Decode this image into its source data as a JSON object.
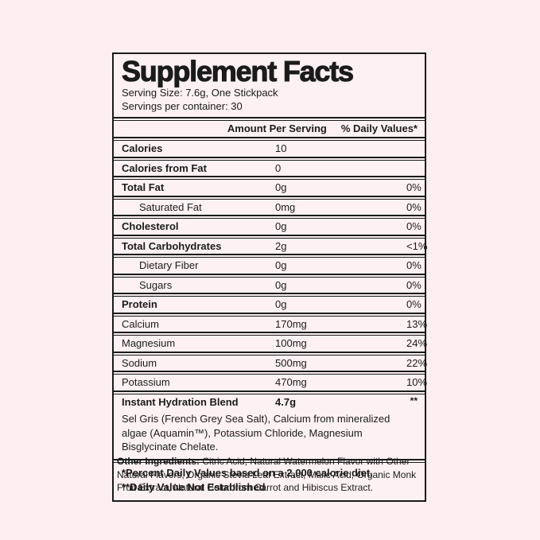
{
  "colors": {
    "page_bg": "#fdeff1",
    "panel_bg": "#fdf1f3",
    "border": "#1a1a1a",
    "text": "#1b1b1b"
  },
  "panel": {
    "title": "Supplement Facts",
    "serving_size": "Serving Size: 7.6g, One Stickpack",
    "servings_per_container": "Servings per container: 30",
    "header": {
      "amount": "Amount Per Serving",
      "daily_value": "% Daily Values*"
    },
    "rows": [
      {
        "label": "Calories",
        "amount": "10",
        "dv": "",
        "bold": true,
        "indent": false
      },
      {
        "label": "Calories from Fat",
        "amount": "0",
        "dv": "",
        "bold": true,
        "indent": false
      },
      {
        "label": "Total Fat",
        "amount": "0g",
        "dv": "0%",
        "bold": true,
        "indent": false
      },
      {
        "label": "Saturated Fat",
        "amount": "0mg",
        "dv": "0%",
        "bold": false,
        "indent": true
      },
      {
        "label": "Cholesterol",
        "amount": "0g",
        "dv": "0%",
        "bold": true,
        "indent": false
      },
      {
        "label": "Total Carbohydrates",
        "amount": "2g",
        "dv": "<1%",
        "bold": true,
        "indent": false
      },
      {
        "label": "Dietary Fiber",
        "amount": "0g",
        "dv": "0%",
        "bold": false,
        "indent": true
      },
      {
        "label": "Sugars",
        "amount": "0g",
        "dv": "0%",
        "bold": false,
        "indent": true
      },
      {
        "label": "Protein",
        "amount": "0g",
        "dv": "0%",
        "bold": true,
        "indent": false
      },
      {
        "label": "Calcium",
        "amount": "170mg",
        "dv": "13%",
        "bold": false,
        "indent": false
      },
      {
        "label": "Magnesium",
        "amount": "100mg",
        "dv": "24%",
        "bold": false,
        "indent": false
      },
      {
        "label": "Sodium",
        "amount": "500mg",
        "dv": "22%",
        "bold": false,
        "indent": false
      },
      {
        "label": "Potassium",
        "amount": "470mg",
        "dv": "10%",
        "bold": false,
        "indent": false
      }
    ],
    "blend": {
      "label": "Instant Hydration Blend",
      "amount": "4.7g",
      "dv": "**",
      "description": "Sel Gris (French Grey Sea Salt), Calcium from mineralized algae (Aquamin™), Potassium Chloride, Magnesium Bisglycinate Chelate."
    },
    "footnotes": [
      "*Percent Daily Values based on a 2,000 calorie diet.",
      "**Daily Value Not Established"
    ]
  },
  "other_ingredients": {
    "label": "Other Ingredients:",
    "text": "Citric Acid, Natural Watermelon Flavor with Other Natural Flavors, Organic Stevia Leaf Extract, Malic Acid, Organic Monk Fruit Extract, Natural Color from Carrot and Hibiscus Extract."
  }
}
